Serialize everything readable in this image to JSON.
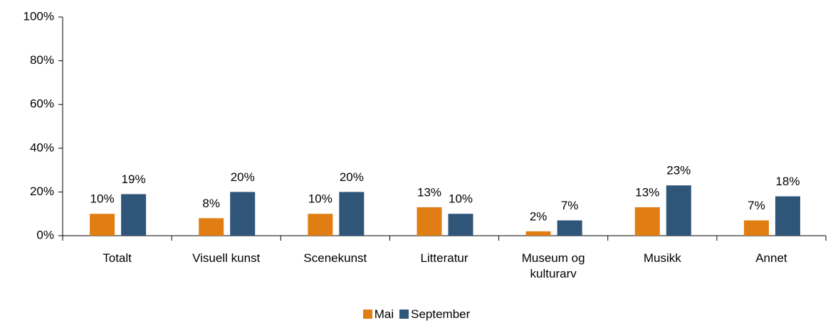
{
  "chart_data": {
    "type": "bar",
    "categories": [
      "Totalt",
      "Visuell kunst",
      "Scenekunst",
      "Litteratur",
      "Museum og kulturarv",
      "Musikk",
      "Annet"
    ],
    "series": [
      {
        "name": "Mai",
        "color": "#e07e14",
        "values": [
          10,
          8,
          10,
          13,
          2,
          13,
          7
        ],
        "value_labels": [
          "10%",
          "8%",
          "10%",
          "13%",
          "2%",
          "13%",
          "7%"
        ]
      },
      {
        "name": "September",
        "color": "#2f5579",
        "values": [
          19,
          20,
          20,
          10,
          7,
          23,
          18
        ],
        "value_labels": [
          "19%",
          "20%",
          "20%",
          "10%",
          "7%",
          "23%",
          "18%"
        ]
      }
    ],
    "ylim": [
      0,
      100
    ],
    "yticks": [
      {
        "value": 0,
        "label": "0%"
      },
      {
        "value": 20,
        "label": "20%"
      },
      {
        "value": 40,
        "label": "40%"
      },
      {
        "value": 60,
        "label": "60%"
      },
      {
        "value": 80,
        "label": "80%"
      },
      {
        "value": 100,
        "label": "100%"
      }
    ],
    "grid": false,
    "legend": "bottom"
  }
}
